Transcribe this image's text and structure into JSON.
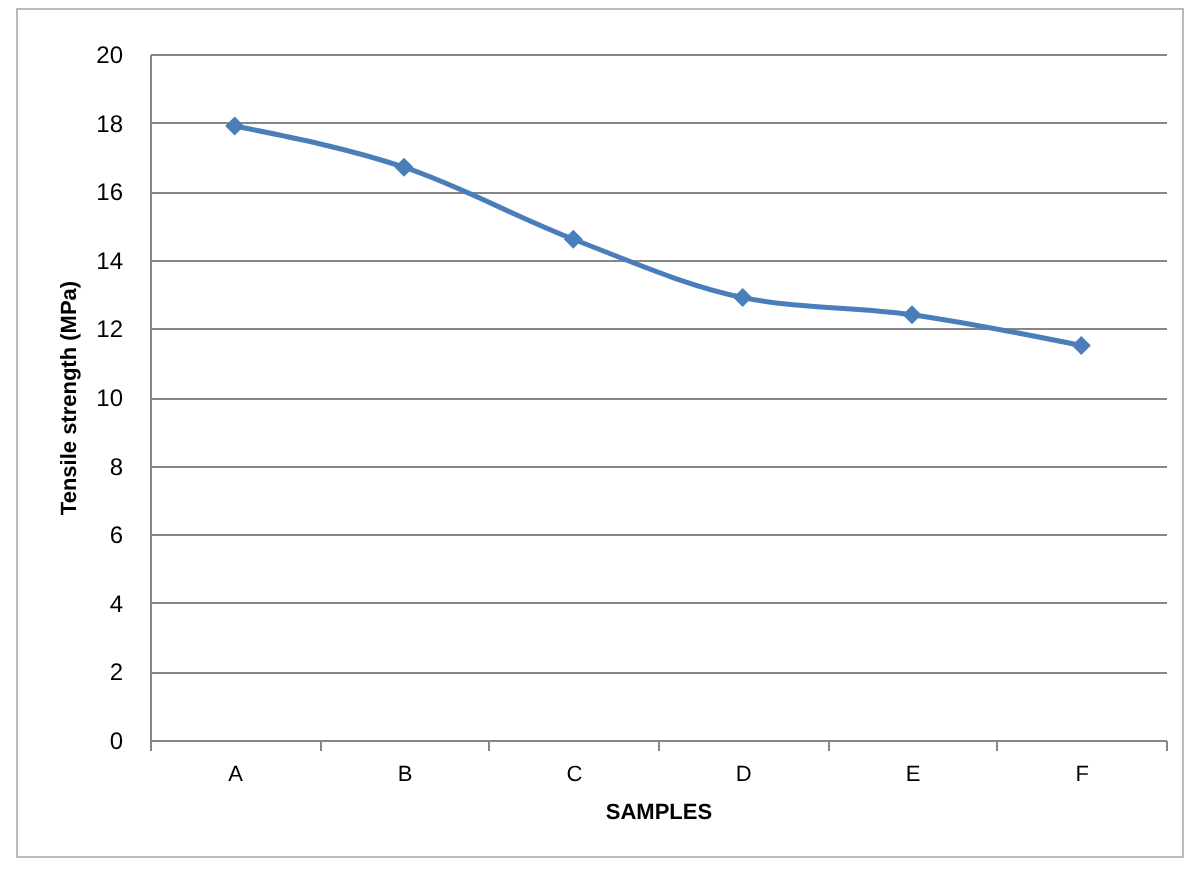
{
  "chart_data": {
    "type": "line",
    "xlabel": "SAMPLES",
    "ylabel": "Tensile strength (MPa)",
    "categories": [
      "A",
      "B",
      "C",
      "D",
      "E",
      "F"
    ],
    "series": [
      {
        "color": "#4a7ebb",
        "values": [
          17.9,
          16.7,
          14.6,
          12.9,
          12.4,
          11.5
        ]
      }
    ],
    "ylim": [
      0,
      20
    ],
    "yticks": [
      0,
      2,
      4,
      6,
      8,
      10,
      12,
      14,
      16,
      18,
      20
    ],
    "grid": "y",
    "marker": "diamond",
    "line_style": "solid"
  }
}
